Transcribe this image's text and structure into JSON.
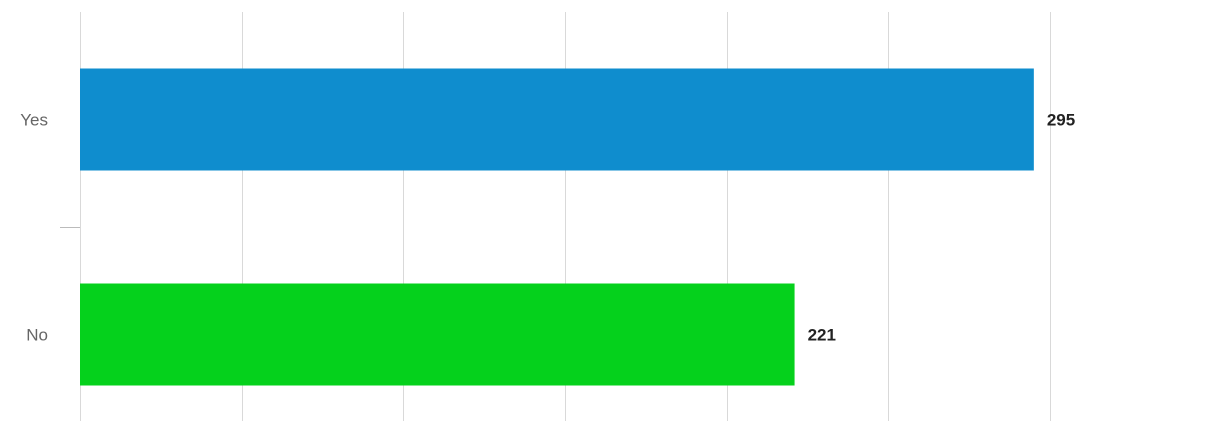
{
  "chart_data": {
    "type": "bar",
    "orientation": "horizontal",
    "title": "",
    "xlabel": "",
    "ylabel": "",
    "categories": [
      "Yes",
      "No"
    ],
    "values": [
      295,
      221
    ],
    "colors": [
      "#0f8dce",
      "#05d11c"
    ],
    "xlim": [
      0,
      300
    ],
    "grid_step": 50,
    "grid": true,
    "legend": "none",
    "data_labels": true
  }
}
